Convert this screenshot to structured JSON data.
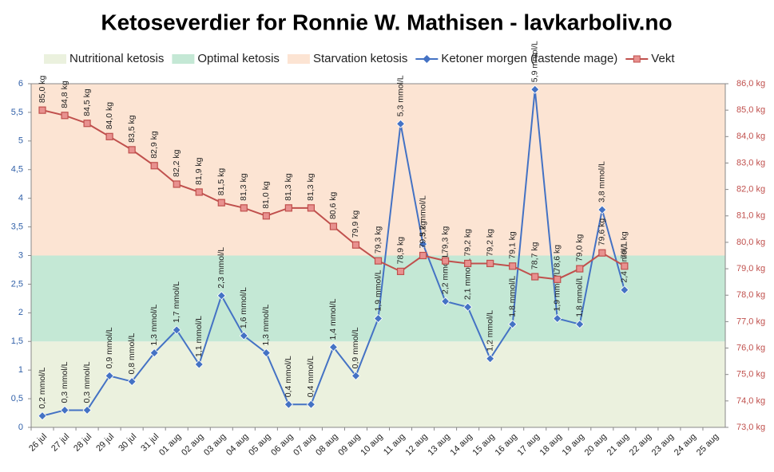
{
  "chart_data": {
    "type": "line",
    "title": "Ketoseverdier for Ronnie W. Mathisen - lavkarboliv.no",
    "categories": [
      "26 jul",
      "27 jul",
      "28 jul",
      "29 jul",
      "30 jul",
      "31 jul",
      "01 aug",
      "02 aug",
      "03 aug",
      "04 aug",
      "05 aug",
      "06 aug",
      "07 aug",
      "08 aug",
      "09 aug",
      "10 aug",
      "11 aug",
      "12 aug",
      "13 aug",
      "14 aug",
      "15 aug",
      "16 aug",
      "17 aug",
      "18 aug",
      "19 aug",
      "20 aug",
      "21 aug",
      "22 aug",
      "23 aug",
      "24 aug",
      "25 aug"
    ],
    "bands": [
      {
        "name": "Nutritional ketosis",
        "color": "#ebf1de",
        "from": 0,
        "to": 1.5
      },
      {
        "name": "Optimal ketosis",
        "color": "#c4e8d5",
        "from": 1.5,
        "to": 3
      },
      {
        "name": "Starvation ketosis",
        "color": "#fce4d3",
        "from": 3,
        "to": 6
      }
    ],
    "series": [
      {
        "name": "Ketoner morgen (fastende mage)",
        "color": "#4472c4",
        "marker": "diamond",
        "values": [
          0.2,
          0.3,
          0.3,
          0.9,
          0.8,
          1.3,
          1.7,
          1.1,
          2.3,
          1.6,
          1.3,
          0.4,
          0.4,
          1.4,
          0.9,
          1.9,
          5.3,
          3.2,
          2.2,
          2.1,
          1.2,
          1.8,
          5.9,
          1.9,
          1.8,
          3.8,
          2.4,
          null,
          null,
          null,
          null
        ],
        "value_labels": [
          "0,2 mmol/L",
          "0,3 mmol/L",
          "0,3 mmol/L",
          "0,9 mmol/L",
          "0,8 mmol/L",
          "1,3 mmol/L",
          "1,7 mmol/L",
          "1,1 mmol/L",
          "2,3 mmol/L",
          "1,6 mmol/L",
          "1,3 mmol/L",
          "0,4 mmol/L",
          "0,4 mmol/L",
          "1,4 mmol/L",
          "0,9 mmol/L",
          "1,9 mmol/L",
          "5,3 mmol/L",
          "3,2 mmol/L",
          "2,2 mmol/L",
          "2,1 mmol/L",
          "1,2 mmol/L",
          "1,8 mmol/L",
          "5,9 mmol/L",
          "1,9 mmol/L",
          "1,8 mmol/L",
          "3,8 mmol/L",
          "2,4 mmol/L",
          null,
          null,
          null,
          null
        ]
      },
      {
        "name": "Vekt",
        "color": "#c0504d",
        "marker": "square",
        "axis": "y2",
        "values": [
          85.0,
          84.8,
          84.5,
          84.0,
          83.5,
          82.9,
          82.2,
          81.9,
          81.5,
          81.3,
          81.0,
          81.3,
          81.3,
          80.6,
          79.9,
          79.3,
          78.9,
          79.5,
          79.3,
          79.2,
          79.2,
          79.1,
          78.7,
          78.6,
          79.0,
          79.6,
          79.1,
          null,
          null,
          null,
          null
        ],
        "value_labels": [
          "85,0 kg",
          "84,8 kg",
          "84,5 kg",
          "84,0 kg",
          "83,5 kg",
          "82,9 kg",
          "82,2 kg",
          "81,9 kg",
          "81,5 kg",
          "81,3 kg",
          "81,0 kg",
          "81,3 kg",
          "81,3 kg",
          "80,6 kg",
          "79,9 kg",
          "79,3 kg",
          "78,9 kg",
          "79,5 kg",
          "79,3 kg",
          "79,2 kg",
          "79,2 kg",
          "79,1 kg",
          "78,7 kg",
          "78,6 kg",
          "79,0 kg",
          "79,6 kg",
          "79,1 kg",
          null,
          null,
          null,
          null
        ]
      }
    ],
    "ylim": [
      0,
      6
    ],
    "yticks": [
      0,
      {
        "value": 0.5,
        "label": "0,5"
      },
      1,
      {
        "value": 1.5,
        "label": "1,5"
      },
      2,
      {
        "value": 2.5,
        "label": "2,5"
      },
      3,
      {
        "value": 3.5,
        "label": "3,5"
      },
      4,
      {
        "value": 4.5,
        "label": "4,5"
      },
      5,
      {
        "value": 5.5,
        "label": "5,5"
      },
      6
    ],
    "y2lim": [
      73,
      86
    ],
    "y2ticks": [
      {
        "value": 73,
        "label": "73,0 kg"
      },
      {
        "value": 74,
        "label": "74,0 kg"
      },
      {
        "value": 75,
        "label": "75,0 kg"
      },
      {
        "value": 76,
        "label": "76,0 kg"
      },
      {
        "value": 77,
        "label": "77,0 kg"
      },
      {
        "value": 78,
        "label": "78,0 kg"
      },
      {
        "value": 79,
        "label": "79,0 kg"
      },
      {
        "value": 80,
        "label": "80,0 kg"
      },
      {
        "value": 81,
        "label": "81,0 kg"
      },
      {
        "value": 82,
        "label": "82,0 kg"
      },
      {
        "value": 83,
        "label": "83,0 kg"
      },
      {
        "value": 84,
        "label": "84,0 kg"
      },
      {
        "value": 85,
        "label": "85,0 kg"
      },
      {
        "value": 86,
        "label": "86,0 kg"
      }
    ],
    "grid": false
  }
}
